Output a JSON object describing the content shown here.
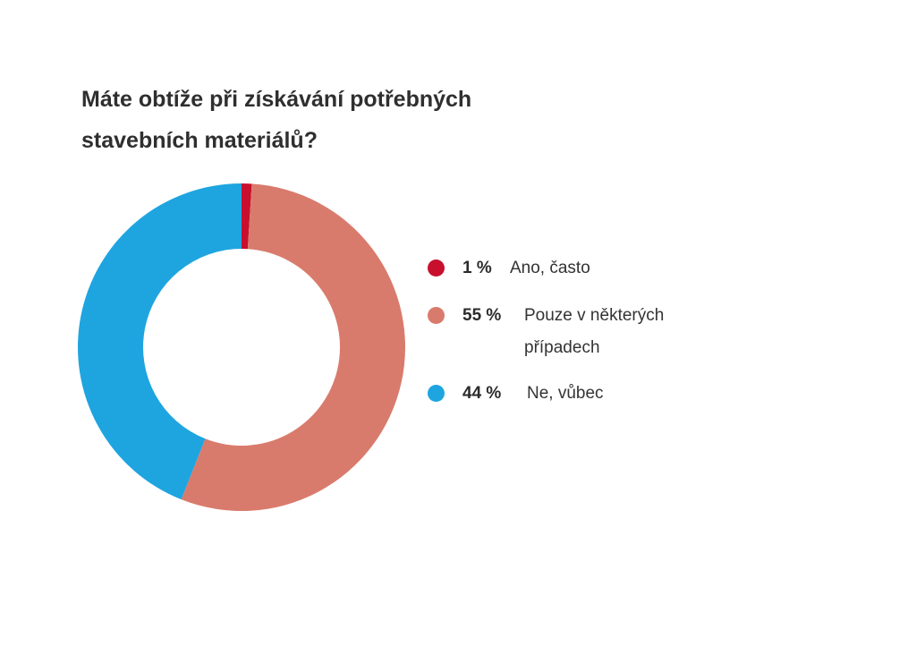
{
  "title": {
    "line1": "Máte obtíže při získávání potřebných",
    "line2": "stavebních materiálů?"
  },
  "chart_data": {
    "type": "pie",
    "style": "donut",
    "title": "Máte obtíže při získávání potřebných stavebních materiálů?",
    "categories": [
      "Ano, často",
      "Pouze v některých případech",
      "Ne, vůbec"
    ],
    "values": [
      1,
      55,
      44
    ],
    "value_labels": [
      "1 %",
      "55 %",
      "44 %"
    ],
    "colors": [
      "#c8102e",
      "#d97b6c",
      "#1ea5e0"
    ],
    "legend_position": "right"
  }
}
